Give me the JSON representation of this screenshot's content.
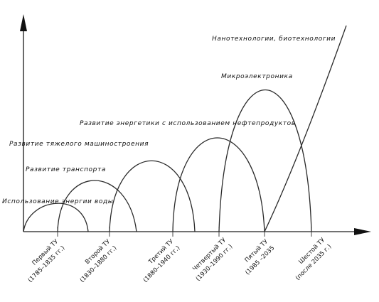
{
  "waves": [
    {
      "id": "w1",
      "label": "Использование энергии воды"
    },
    {
      "id": "w2",
      "label": "Развитие транспорта"
    },
    {
      "id": "w3",
      "label": "Развитие тяжелого машиностроения"
    },
    {
      "id": "w4",
      "label": "Развитие энергетики с использованием нефтепродуктов"
    },
    {
      "id": "w5",
      "label": "Микроэлектроника"
    },
    {
      "id": "w6",
      "label": "Нанотехнологии, биотехнологии"
    }
  ],
  "periods": [
    {
      "id": "p1",
      "name": "Первый ТУ",
      "years": "(1785–1835 гг.)"
    },
    {
      "id": "p2",
      "name": "Второй ТУ",
      "years": "(1830–1880 гг.)"
    },
    {
      "id": "p3",
      "name": "Третий ТУ",
      "years": "(1880–1940 гг.)"
    },
    {
      "id": "p4",
      "name": "Четвертый ТУ",
      "years": "(1930–1990 гг.)"
    },
    {
      "id": "p5",
      "name": "Пятый ТУ",
      "years": "(1985 –2035"
    },
    {
      "id": "p6",
      "name": "Шестой ТУ",
      "years": "(после 2035 г.)"
    }
  ]
}
